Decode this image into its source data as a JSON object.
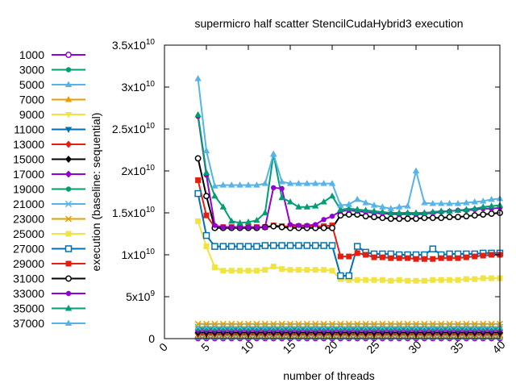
{
  "chart_data": {
    "type": "line",
    "title": "supermicro half scatter StencilCudaHybrid3 execution",
    "xlabel": "number of threads",
    "ylabel": "execution (baseline: sequential)",
    "xlim": [
      0,
      40
    ],
    "ylim": [
      0,
      35000000000
    ],
    "xticks": [
      "0",
      "5",
      "10",
      "15",
      "20",
      "25",
      "30",
      "35",
      "40"
    ],
    "yticks": [
      {
        "value": 0,
        "mant": "0",
        "exp": ""
      },
      {
        "value": 5000000000,
        "mant": "5x10",
        "exp": "9"
      },
      {
        "value": 10000000000,
        "mant": "1x10",
        "exp": "10"
      },
      {
        "value": 15000000000,
        "mant": "1.5x10",
        "exp": "10"
      },
      {
        "value": 20000000000,
        "mant": "2x10",
        "exp": "10"
      },
      {
        "value": 25000000000,
        "mant": "2.5x10",
        "exp": "10"
      },
      {
        "value": 30000000000,
        "mant": "3x10",
        "exp": "10"
      },
      {
        "value": 35000000000,
        "mant": "3.5x10",
        "exp": "10"
      }
    ],
    "grid": false,
    "legend_position": "left",
    "x": [
      4,
      5,
      6,
      7,
      8,
      9,
      10,
      11,
      12,
      13,
      14,
      15,
      16,
      17,
      18,
      19,
      20,
      21,
      22,
      23,
      24,
      25,
      26,
      27,
      28,
      29,
      30,
      31,
      32,
      33,
      34,
      35,
      36,
      37,
      38,
      39,
      40
    ],
    "series": [
      {
        "name": "1000",
        "color": "#9400d3",
        "marker": "circle-open",
        "const": 50000000
      },
      {
        "name": "3000",
        "color": "#009e73",
        "marker": "circle",
        "const": 100000000
      },
      {
        "name": "5000",
        "color": "#56b4e9",
        "marker": "triangle",
        "const": 150000000
      },
      {
        "name": "7000",
        "color": "#e69f00",
        "marker": "triangle",
        "const": 250000000
      },
      {
        "name": "9000",
        "color": "#f0e442",
        "marker": "triangle-down",
        "const": 350000000
      },
      {
        "name": "11000",
        "color": "#0072b2",
        "marker": "triangle-down",
        "const": 450000000
      },
      {
        "name": "13000",
        "color": "#e51e10",
        "marker": "diamond",
        "const": 600000000
      },
      {
        "name": "15000",
        "color": "#000000",
        "marker": "diamond",
        "const": 750000000
      },
      {
        "name": "17000",
        "color": "#9400d3",
        "marker": "diamond",
        "const": 1000000000
      },
      {
        "name": "19000",
        "color": "#009e73",
        "marker": "circle",
        "const": 1200000000
      },
      {
        "name": "21000",
        "color": "#56b4e9",
        "marker": "cross",
        "const": 1400000000
      },
      {
        "name": "23000",
        "color": "#e69f00",
        "marker": "cross",
        "const": 1750000000
      },
      {
        "name": "25000",
        "color": "#f0e442",
        "marker": "square",
        "values": [
          14000000000,
          11000000000,
          8500000000,
          8100000000,
          8100000000,
          8100000000,
          8100000000,
          8100000000,
          8200000000,
          8600000000,
          8300000000,
          8200000000,
          8200000000,
          8200000000,
          8200000000,
          8200000000,
          8100000000,
          7100000000,
          7000000000,
          7000000000,
          7000000000,
          7000000000,
          7000000000,
          6900000000,
          7000000000,
          6900000000,
          6900000000,
          6900000000,
          7000000000,
          7000000000,
          7000000000,
          7000000000,
          7100000000,
          7100000000,
          7200000000,
          7200000000,
          7200000000
        ]
      },
      {
        "name": "27000",
        "color": "#0072b2",
        "marker": "square-open",
        "values": [
          17300000000,
          12300000000,
          11000000000,
          11000000000,
          11000000000,
          11000000000,
          11000000000,
          11000000000,
          11100000000,
          11100000000,
          11100000000,
          11100000000,
          11100000000,
          11100000000,
          11100000000,
          11100000000,
          11100000000,
          7500000000,
          7500000000,
          11000000000,
          10300000000,
          10100000000,
          10100000000,
          10100000000,
          10000000000,
          10000000000,
          10000000000,
          10000000000,
          10700000000,
          10000000000,
          10100000000,
          10100000000,
          10100000000,
          10100000000,
          10200000000,
          10200000000,
          10200000000
        ]
      },
      {
        "name": "29000",
        "color": "#e51e10",
        "marker": "square",
        "values": [
          18900000000,
          14700000000,
          13300000000,
          13300000000,
          13300000000,
          13300000000,
          13300000000,
          13300000000,
          13300000000,
          13500000000,
          13400000000,
          13400000000,
          13400000000,
          13400000000,
          13400000000,
          13400000000,
          13500000000,
          9800000000,
          9800000000,
          10200000000,
          10000000000,
          9700000000,
          9700000000,
          9600000000,
          9600000000,
          9600000000,
          9500000000,
          9500000000,
          9500000000,
          9600000000,
          9600000000,
          9600000000,
          9700000000,
          9800000000,
          9900000000,
          10000000000,
          10000000000
        ]
      },
      {
        "name": "31000",
        "color": "#000000",
        "marker": "circle-open",
        "values": [
          21500000000,
          17000000000,
          13200000000,
          13200000000,
          13200000000,
          13200000000,
          13200000000,
          13200000000,
          13300000000,
          13400000000,
          13300000000,
          13200000000,
          13200000000,
          13200000000,
          13200000000,
          13200000000,
          13200000000,
          14700000000,
          14800000000,
          14800000000,
          14600000000,
          14500000000,
          14400000000,
          14300000000,
          14300000000,
          14300000000,
          14300000000,
          14400000000,
          14400000000,
          14400000000,
          14500000000,
          14500000000,
          14600000000,
          14700000000,
          14800000000,
          14900000000,
          15000000000
        ]
      },
      {
        "name": "33000",
        "color": "#9400d3",
        "marker": "circle",
        "values": [
          26500000000,
          19500000000,
          13500000000,
          13300000000,
          13300000000,
          13300000000,
          13300000000,
          13300000000,
          13300000000,
          18000000000,
          17900000000,
          13600000000,
          13500000000,
          13500000000,
          13600000000,
          14200000000,
          14600000000,
          15200000000,
          15300000000,
          15200000000,
          15100000000,
          15000000000,
          14900000000,
          14900000000,
          14800000000,
          14900000000,
          14800000000,
          14900000000,
          15000000000,
          15100000000,
          15200000000,
          15300000000,
          15300000000,
          15400000000,
          15500000000,
          15500000000,
          15600000000
        ]
      },
      {
        "name": "35000",
        "color": "#009e73",
        "marker": "triangle",
        "values": [
          26700000000,
          19800000000,
          17000000000,
          15700000000,
          14000000000,
          13800000000,
          13900000000,
          14100000000,
          15000000000,
          22000000000,
          16800000000,
          16300000000,
          15700000000,
          15700000000,
          15800000000,
          16300000000,
          17000000000,
          15400000000,
          15500000000,
          15400000000,
          15300000000,
          15200000000,
          15100000000,
          15000000000,
          15000000000,
          15000000000,
          15000000000,
          15000000000,
          15100000000,
          15200000000,
          15200000000,
          15300000000,
          15400000000,
          15500000000,
          15700000000,
          15800000000,
          15900000000
        ]
      },
      {
        "name": "37000",
        "color": "#56b4e9",
        "marker": "triangle",
        "values": [
          31000000000,
          22400000000,
          18200000000,
          18300000000,
          18300000000,
          18300000000,
          18300000000,
          18300000000,
          18500000000,
          22000000000,
          18700000000,
          18500000000,
          18500000000,
          18500000000,
          18500000000,
          18500000000,
          18500000000,
          15900000000,
          16000000000,
          16600000000,
          16200000000,
          15900000000,
          15700000000,
          15500000000,
          15700000000,
          15800000000,
          20000000000,
          16200000000,
          16100000000,
          16100000000,
          16100000000,
          16100000000,
          16200000000,
          16300000000,
          16400000000,
          16600000000,
          16700000000
        ]
      }
    ]
  }
}
